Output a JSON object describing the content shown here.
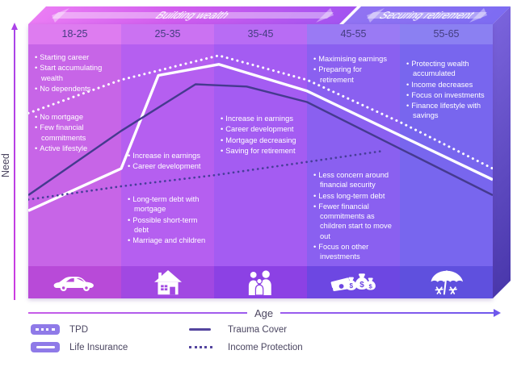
{
  "phases": {
    "building": {
      "label": "Building wealth"
    },
    "securing": {
      "label": "Securing retirement"
    }
  },
  "axes": {
    "y_label": "Need",
    "x_label": "Age"
  },
  "columns": [
    {
      "age": "18-25",
      "icon": "car-icon",
      "groups": [
        {
          "items": [
            "Starting career",
            "Start accumulating wealth",
            "No dependents"
          ]
        },
        {
          "items": [
            "No mortgage",
            "Few financial commitments",
            "Active lifestyle"
          ]
        }
      ]
    },
    {
      "age": "25-35",
      "icon": "house-icon",
      "groups": [
        {
          "items": [
            "Increase in earnings",
            "Career development"
          ]
        },
        {
          "items": [
            "Long-term debt with mortgage",
            "Possible short-term debt",
            "Marriage and children"
          ]
        }
      ]
    },
    {
      "age": "35-45",
      "icon": "family-icon",
      "groups": [
        {
          "items": [
            "Increase in earnings",
            "Career development",
            "Mortgage decreasing",
            "Saving for retirement"
          ]
        }
      ]
    },
    {
      "age": "45-55",
      "icon": "money-icon",
      "groups": [
        {
          "items": [
            "Maximising earnings",
            "Preparing for retirement"
          ]
        },
        {
          "items": [
            "Less concern around financial security",
            "Less long-term debt",
            "Fewer financial commitments as children start to move out",
            "Focus on other investments"
          ]
        }
      ]
    },
    {
      "age": "55-65",
      "icon": "umbrella-icon",
      "groups": [
        {
          "items": [
            "Protecting wealth accumulated",
            "Income decreases",
            "Focus on investments",
            "Finance lifestyle with savings"
          ]
        }
      ]
    }
  ],
  "legend": {
    "items": [
      {
        "label": "TPD",
        "swatch": "chip-dotted"
      },
      {
        "label": "Trauma Cover",
        "swatch": "line-solid"
      },
      {
        "label": "Life Insurance",
        "swatch": "chip-solid"
      },
      {
        "label": "Income Protection",
        "swatch": "line-dotted"
      }
    ]
  },
  "colors": {
    "column_fronts": [
      "#c765e7",
      "#b55ff0",
      "#a45cf2",
      "#8a60f0",
      "#7866ee"
    ],
    "icon_band": [
      "#b84ad8",
      "#a148e2",
      "#8c41e4",
      "#6d47e2",
      "#5f50de"
    ],
    "banner_building": "#d05cee",
    "banner_securing": "#7d6cf2",
    "line_dark": "#453a8f",
    "line_white": "#ffffff",
    "axis_magenta": "#c444e4",
    "axis_blue": "#6e58ec",
    "text_dark": "#4a4560"
  },
  "chart_data": {
    "type": "line",
    "title": "",
    "xlabel": "Age",
    "ylabel": "Need",
    "x_categories": [
      "18-25",
      "25-35",
      "35-45",
      "45-55",
      "55-65"
    ],
    "x_phase_bands": [
      {
        "label": "Building wealth",
        "categories": [
          "18-25",
          "25-35",
          "35-45"
        ]
      },
      {
        "label": "Securing retirement",
        "categories": [
          "45-55",
          "55-65"
        ]
      }
    ],
    "y_units": "relative need, unlabeled qualitative axis (0-100 est.)",
    "x_units": "percent across age axis (0 = age 18 edge, 100 = age 65 edge)",
    "grid": false,
    "legend_position": "bottom-left",
    "series": [
      {
        "name": "TPD",
        "style": "dotted",
        "color": "#ffffff",
        "width": 3,
        "dash": "0.1 6.5",
        "points": [
          [
            0,
            69
          ],
          [
            20,
            84
          ],
          [
            41,
            95
          ],
          [
            60,
            84
          ],
          [
            80,
            65
          ],
          [
            100,
            44
          ]
        ]
      },
      {
        "name": "Life Insurance",
        "style": "solid",
        "color": "#ffffff",
        "width": 3.4,
        "points": [
          [
            0,
            25
          ],
          [
            20,
            44
          ],
          [
            28,
            86
          ],
          [
            41,
            91
          ],
          [
            60,
            79
          ],
          [
            100,
            39
          ]
        ]
      },
      {
        "name": "Trauma Cover",
        "style": "solid",
        "color": "#453a8f",
        "width": 2.4,
        "points": [
          [
            0,
            32
          ],
          [
            20,
            61
          ],
          [
            36,
            82
          ],
          [
            47,
            81
          ],
          [
            60,
            74
          ],
          [
            100,
            32
          ]
        ]
      },
      {
        "name": "Income Protection",
        "style": "dotted",
        "color": "#473d99",
        "width": 2.7,
        "dash": "0.1 6",
        "points": [
          [
            0,
            30
          ],
          [
            20,
            36
          ],
          [
            40,
            41
          ],
          [
            60,
            47
          ],
          [
            76.5,
            52
          ]
        ]
      }
    ]
  }
}
